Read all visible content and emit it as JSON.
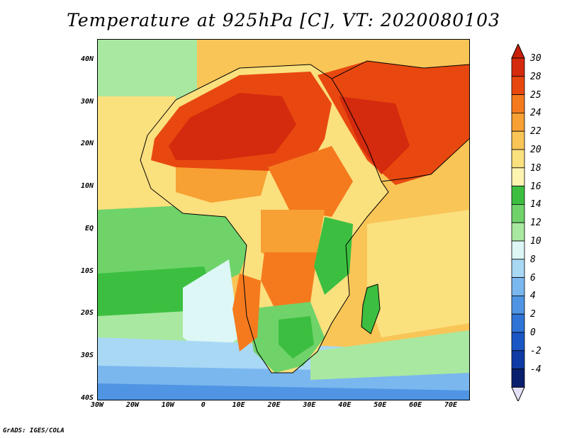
{
  "title": "Temperature at 925hPa [C], VT: 2020080103",
  "credit": "GrADS: IGES/COLA",
  "map": {
    "lon_range": [
      -30,
      75
    ],
    "lat_range": [
      -40,
      45
    ],
    "lat_ticks": [
      {
        "value": 40,
        "label": "40N"
      },
      {
        "value": 30,
        "label": "30N"
      },
      {
        "value": 20,
        "label": "20N"
      },
      {
        "value": 10,
        "label": "10N"
      },
      {
        "value": 0,
        "label": "EQ"
      },
      {
        "value": -10,
        "label": "10S"
      },
      {
        "value": -20,
        "label": "20S"
      },
      {
        "value": -30,
        "label": "30S"
      },
      {
        "value": -40,
        "label": "40S"
      }
    ],
    "lon_ticks": [
      {
        "value": -30,
        "label": "30W"
      },
      {
        "value": -20,
        "label": "20W"
      },
      {
        "value": -10,
        "label": "10W"
      },
      {
        "value": 0,
        "label": "0"
      },
      {
        "value": 10,
        "label": "10E"
      },
      {
        "value": 20,
        "label": "20E"
      },
      {
        "value": 30,
        "label": "30E"
      },
      {
        "value": 40,
        "label": "40E"
      },
      {
        "value": 50,
        "label": "50E"
      },
      {
        "value": 60,
        "label": "60E"
      },
      {
        "value": 70,
        "label": "70E"
      }
    ]
  },
  "colorbar": {
    "levels": [
      {
        "label": "30",
        "color": "#d42a0e"
      },
      {
        "label": "28",
        "color": "#e8480f"
      },
      {
        "label": "25",
        "color": "#f57a1e"
      },
      {
        "label": "24",
        "color": "#f7a033"
      },
      {
        "label": "22",
        "color": "#f9c557"
      },
      {
        "label": "20",
        "color": "#fbe07e"
      },
      {
        "label": "18",
        "color": "#fdf4b1"
      },
      {
        "label": "16",
        "color": "#3cbf40"
      },
      {
        "label": "14",
        "color": "#6fd36a"
      },
      {
        "label": "12",
        "color": "#a9e8a0"
      },
      {
        "label": "10",
        "color": "#dcf7f5"
      },
      {
        "label": "8",
        "color": "#a9d8f5"
      },
      {
        "label": "6",
        "color": "#7ab7ef"
      },
      {
        "label": "4",
        "color": "#4f95e3"
      },
      {
        "label": "2",
        "color": "#2f74d7"
      },
      {
        "label": "0",
        "color": "#1a57c4"
      },
      {
        "label": "-2",
        "color": "#0e3ba5"
      },
      {
        "label": "-4",
        "color": "#0a1f6e"
      }
    ],
    "top_color": "#c8200a",
    "bottom_color": "#e6e0f7"
  }
}
